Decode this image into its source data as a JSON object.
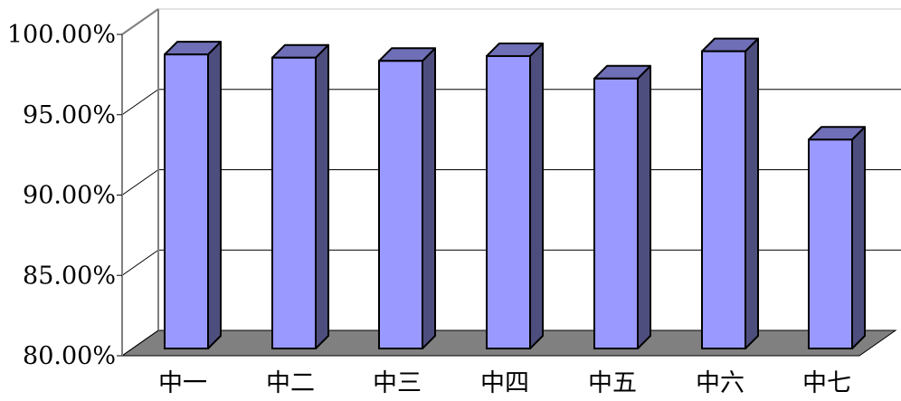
{
  "chart_data": {
    "type": "bar",
    "style": "3d-column",
    "categories": [
      "中一",
      "中二",
      "中三",
      "中四",
      "中五",
      "中六",
      "中七"
    ],
    "values": [
      98.3,
      98.1,
      97.9,
      98.2,
      96.8,
      98.5,
      93.0
    ],
    "ylim": [
      80,
      100
    ],
    "yticks": [
      "80.00%",
      "85.00%",
      "90.00%",
      "95.00%",
      "100.00%"
    ],
    "grid": true,
    "legend": "none",
    "colors": {
      "bar_front": "#9999ff",
      "bar_side": "#4e4e7e",
      "bar_top": "#6f6fb7",
      "floor": "#808080",
      "wall": "#ffffff",
      "gridline": "#000000"
    }
  }
}
